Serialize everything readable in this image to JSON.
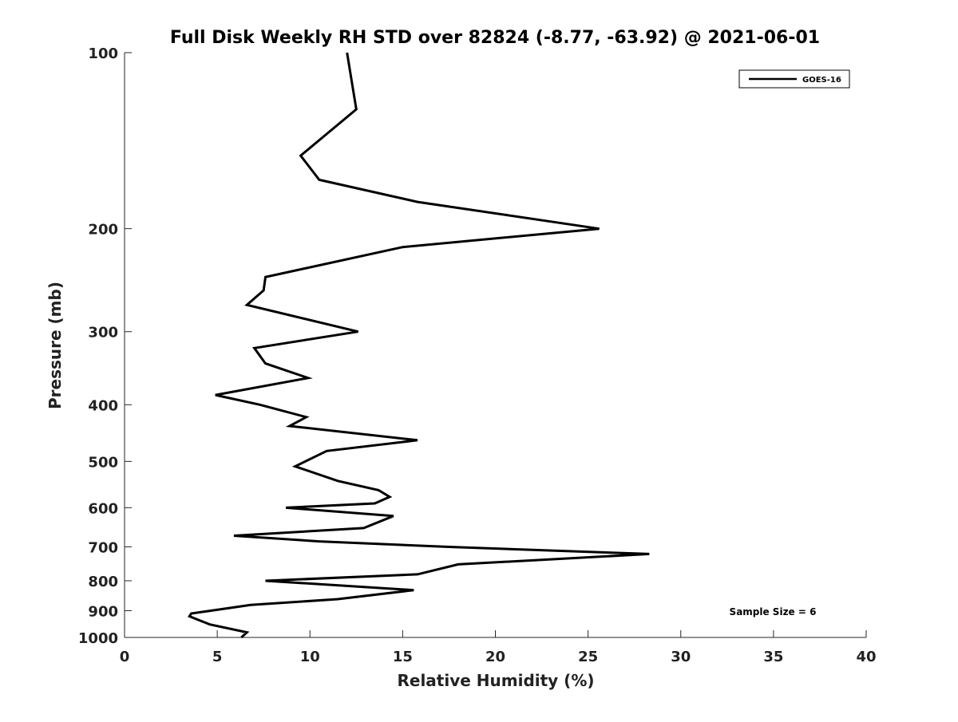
{
  "chart_data": {
    "type": "line",
    "title": "Full Disk Weekly RH STD over 82824 (-8.77, -63.92) @ 2021-06-01",
    "xlabel": "Relative Humidity (%)",
    "ylabel": "Pressure (mb)",
    "xlim": [
      0,
      40
    ],
    "ylim": [
      100,
      1000
    ],
    "y_scale": "log",
    "y_reversed": true,
    "x_ticks": [
      0,
      5,
      10,
      15,
      20,
      25,
      30,
      35,
      40
    ],
    "y_ticks": [
      100,
      200,
      300,
      400,
      500,
      600,
      700,
      800,
      900,
      1000
    ],
    "grid": false,
    "legend_position": "top-right",
    "annotation": "Sample Size = 6",
    "series": [
      {
        "name": "GOES-16",
        "color": "#000000",
        "points": [
          [
            12.0,
            100
          ],
          [
            12.5,
            125
          ],
          [
            9.5,
            150
          ],
          [
            10.5,
            165
          ],
          [
            15.8,
            180
          ],
          [
            25.6,
            200
          ],
          [
            15.0,
            215
          ],
          [
            7.6,
            242
          ],
          [
            7.5,
            255
          ],
          [
            6.6,
            270
          ],
          [
            12.6,
            300
          ],
          [
            7.0,
            320
          ],
          [
            7.6,
            340
          ],
          [
            9.9,
            360
          ],
          [
            4.9,
            385
          ],
          [
            7.3,
            400
          ],
          [
            9.8,
            420
          ],
          [
            8.9,
            435
          ],
          [
            15.8,
            460
          ],
          [
            10.9,
            480
          ],
          [
            9.2,
            510
          ],
          [
            11.5,
            540
          ],
          [
            13.7,
            560
          ],
          [
            14.3,
            575
          ],
          [
            13.5,
            590
          ],
          [
            8.7,
            600
          ],
          [
            14.5,
            620
          ],
          [
            12.9,
            650
          ],
          [
            5.9,
            670
          ],
          [
            10.5,
            685
          ],
          [
            17.5,
            700
          ],
          [
            28.3,
            720
          ],
          [
            18.0,
            750
          ],
          [
            15.8,
            780
          ],
          [
            7.6,
            800
          ],
          [
            15.6,
            830
          ],
          [
            11.5,
            860
          ],
          [
            6.8,
            880
          ],
          [
            3.6,
            910
          ],
          [
            3.5,
            920
          ],
          [
            4.6,
            950
          ],
          [
            6.6,
            980
          ],
          [
            6.3,
            1000
          ]
        ]
      }
    ]
  }
}
